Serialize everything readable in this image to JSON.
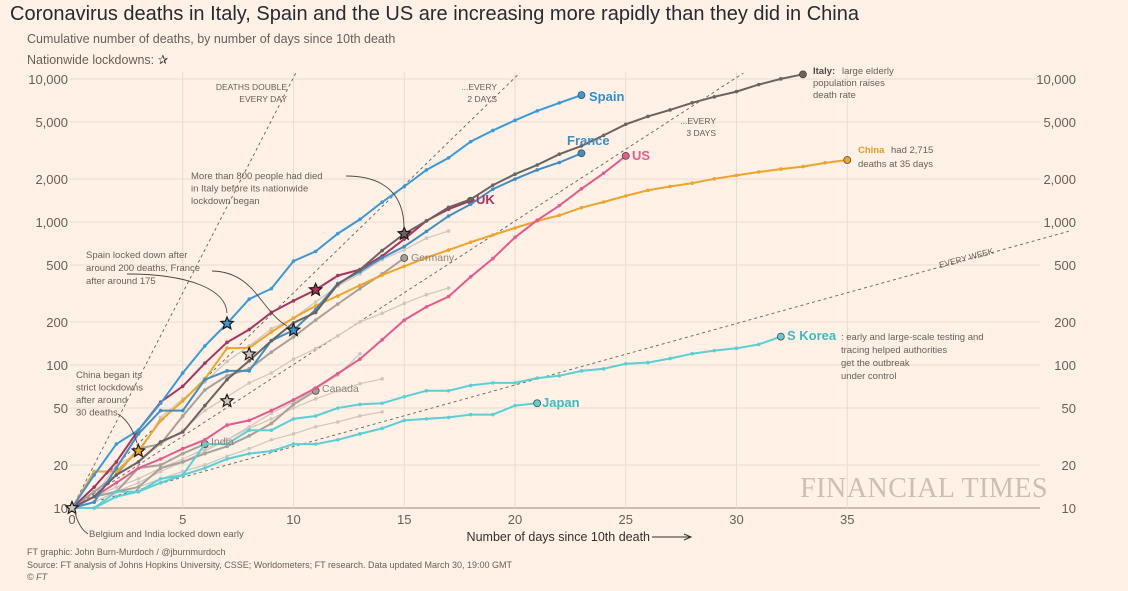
{
  "title": "Coronavirus deaths in Italy, Spain and the US are increasing more rapidly than they did in China",
  "subtitle": "Cumulative number of deaths, by number of days since 10th death",
  "lockdown_legend": "Nationwide lockdowns:",
  "lockdown_icon": "star-icon",
  "watermark": "FINANCIAL TIMES",
  "footer": {
    "credit": "FT graphic: John Burn-Murdoch / @jburnmurdoch",
    "source": "Source: FT analysis of Johns Hopkins University, CSSE; Worldometers; FT research. Data updated March 30, 19:00 GMT",
    "copyright": "© FT"
  },
  "annotations": {
    "double_day": [
      "DEATHS DOUBLE",
      "EVERY DAY"
    ],
    "double_2": [
      "...EVERY",
      "2 DAYS"
    ],
    "double_3": [
      "...EVERY",
      "3 DAYS"
    ],
    "double_week": "EVERY WEEK",
    "italy_bold": "Italy:",
    "italy": [
      " large elderly",
      "population raises",
      "death rate"
    ],
    "china_bold": "China",
    "china": [
      " had 2,715",
      "deaths at 35 days"
    ],
    "skorea_bold": "S Korea",
    "skorea": [
      ": early and large-scale testing and",
      "tracing helped authorities",
      "get the outbreak",
      "under control"
    ],
    "italy_lockdown": [
      "More than 800 people had died",
      "in Italy before its nationwide",
      "lockdown began"
    ],
    "spain_lockdown": [
      "Spain locked down after",
      "around 200 deaths, France",
      "after around 175"
    ],
    "china_lockdown": [
      "China began its",
      "strict lockdowns",
      "after around",
      "30 deaths"
    ],
    "belgium_india": "Belgium and India locked down early"
  },
  "chart_data": {
    "type": "line",
    "title": "Coronavirus deaths in Italy, Spain and the US are increasing more rapidly than they did in China",
    "subtitle": "Cumulative number of deaths, by number of days since 10th death",
    "xlabel": "Number of days since 10th death",
    "ylabel": "",
    "xlim": [
      0,
      45
    ],
    "ylim": [
      10,
      10000
    ],
    "yscale": "log",
    "xticks": [
      0,
      5,
      10,
      15,
      20,
      25,
      30,
      35
    ],
    "yticks": [
      10,
      20,
      50,
      100,
      200,
      500,
      1000,
      2000,
      5000,
      10000
    ],
    "ytick_labels": [
      "10",
      "20",
      "50",
      "100",
      "200",
      "500",
      "1,000",
      "2,000",
      "5,000",
      "10,000"
    ],
    "grid": true,
    "colors": {
      "background": "#fff1e5",
      "Italy": "#6b6361",
      "Spain": "#3a9ad8",
      "France": "#3f8ec4",
      "UK": "#a8345f",
      "US": "#e35b8f",
      "China": "#f0a42a",
      "S Korea": "#5ccfd6",
      "Japan": "#5ccfd6",
      "other": "#cfc6be",
      "labelled_grey": "#a8a09a"
    },
    "doubling_guides": [
      {
        "label": "DEATHS DOUBLE EVERY DAY",
        "days": 1
      },
      {
        "label": "...EVERY 2 DAYS",
        "days": 2
      },
      {
        "label": "...EVERY 3 DAYS",
        "days": 3
      },
      {
        "label": "EVERY WEEK",
        "days": 7
      }
    ],
    "series": [
      {
        "name": "",
        "color_key": "other",
        "values": [
          10,
          13,
          17,
          21,
          28,
          35,
          48,
          60,
          75,
          88,
          110,
          130,
          160,
          200,
          230,
          270,
          310,
          345
        ]
      },
      {
        "name": "",
        "color_key": "other",
        "values": [
          10,
          12,
          20,
          24,
          43,
          58,
          76,
          106,
          136,
          179,
          213,
          276,
          356,
          434,
          546,
          639,
          771,
          864
        ]
      },
      {
        "name": "",
        "color_key": "other",
        "values": [
          10,
          11,
          13,
          15,
          18,
          21,
          25,
          30,
          37,
          46,
          55,
          68,
          85,
          120
        ]
      },
      {
        "name": "",
        "color_key": "other",
        "values": [
          10,
          12,
          14,
          16,
          19,
          22,
          26,
          30,
          36,
          42,
          50,
          58,
          66,
          74,
          80
        ]
      },
      {
        "name": "",
        "color_key": "other",
        "values": [
          10,
          11,
          13,
          14,
          16,
          18,
          20,
          23,
          26,
          30,
          33,
          37,
          40,
          44,
          47
        ]
      },
      {
        "name": "Germany",
        "color_key": "labelled_grey",
        "values": [
          10,
          13,
          17,
          26,
          28,
          44,
          67,
          84,
          94,
          123,
          157,
          206,
          267,
          342,
          433,
          560
        ]
      },
      {
        "name": "Canada",
        "color_key": "labelled_grey",
        "values": [
          10,
          12,
          13,
          14,
          19,
          21,
          24,
          27,
          32,
          39,
          53,
          66
        ]
      },
      {
        "name": "India",
        "color_key": "labelled_grey",
        "values": [
          10,
          12,
          13,
          19,
          20,
          24,
          28
        ]
      },
      {
        "name": "Japan",
        "color_key": "Japan",
        "values": [
          10,
          10,
          12,
          13,
          15,
          17,
          19,
          22,
          24,
          25,
          28,
          28,
          30,
          33,
          36,
          41,
          42,
          43,
          45,
          45,
          52,
          54
        ]
      },
      {
        "name": "S Korea",
        "color_key": "S Korea",
        "values": [
          10,
          10,
          13,
          13,
          16,
          17,
          28,
          28,
          35,
          35,
          42,
          44,
          50,
          53,
          54,
          60,
          66,
          66,
          72,
          75,
          75,
          81,
          84,
          91,
          94,
          102,
          104,
          111,
          120,
          126,
          131,
          139,
          158
        ]
      },
      {
        "name": "China",
        "color_key": "China",
        "values": [
          10,
          18,
          18,
          25,
          41,
          56,
          80,
          131,
          132,
          170,
          213,
          259,
          304,
          361,
          425,
          490,
          563,
          636,
          722,
          811,
          908,
          1016,
          1113,
          1259,
          1380,
          1523,
          1665,
          1770,
          1868,
          2004,
          2118,
          2236,
          2345,
          2442,
          2592,
          2715
        ]
      },
      {
        "name": "US",
        "color_key": "US",
        "values": [
          10,
          12,
          15,
          19,
          22,
          26,
          30,
          38,
          41,
          48,
          57,
          69,
          87,
          110,
          150,
          206,
          255,
          301,
          414,
          555,
          780,
          1027,
          1301,
          1707,
          2191,
          2900
        ]
      },
      {
        "name": "UK",
        "color_key": "UK",
        "values": [
          10,
          14,
          21,
          35,
          55,
          71,
          103,
          144,
          177,
          233,
          281,
          335,
          422,
          465,
          578,
          759,
          1019,
          1228,
          1408
        ]
      },
      {
        "name": "France",
        "color_key": "France",
        "values": [
          10,
          11,
          19,
          33,
          48,
          48,
          79,
          91,
          91,
          148,
          175,
          244,
          372,
          450,
          562,
          674,
          860,
          1100,
          1331,
          1696,
          1995,
          2314,
          2606,
          3024
        ]
      },
      {
        "name": "Spain",
        "color_key": "Spain",
        "values": [
          10,
          17,
          28,
          35,
          54,
          88,
          136,
          195,
          289,
          342,
          533,
          623,
          830,
          1043,
          1375,
          1772,
          2311,
          2808,
          3647,
          4365,
          5138,
          5982,
          6803,
          7716
        ]
      },
      {
        "name": "Italy",
        "color_key": "Italy",
        "values": [
          10,
          12,
          17,
          21,
          29,
          34,
          52,
          79,
          107,
          148,
          197,
          233,
          366,
          463,
          631,
          827,
          1016,
          1266,
          1441,
          1809,
          2158,
          2503,
          2978,
          3405,
          4032,
          4825,
          5476,
          6077,
          6820,
          7503,
          8165,
          9134,
          10023,
          10779
        ]
      }
    ],
    "lockdowns": [
      {
        "country": "Belgium",
        "day": 0,
        "value": 10
      },
      {
        "country": "China",
        "day": 3,
        "value": 25
      },
      {
        "country": "",
        "day": 7,
        "value": 56
      },
      {
        "country": "Spain",
        "day": 7,
        "value": 195
      },
      {
        "country": "",
        "day": 8,
        "value": 119
      },
      {
        "country": "France",
        "day": 10,
        "value": 175
      },
      {
        "country": "UK",
        "day": 11,
        "value": 335
      },
      {
        "country": "Italy",
        "day": 15,
        "value": 827
      }
    ]
  }
}
